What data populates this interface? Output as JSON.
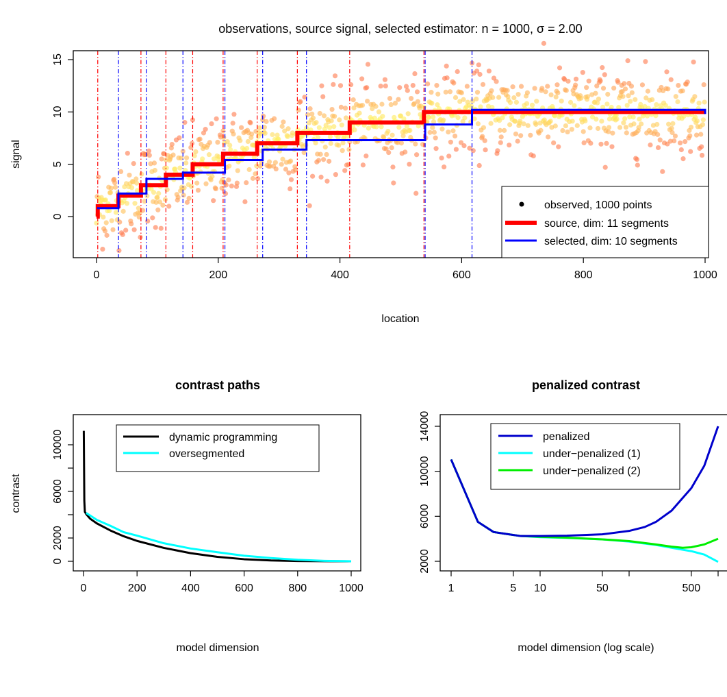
{
  "chart_data": [
    {
      "type": "scatter",
      "title": "observations, source signal, selected estimator: n = 1000, σ = 2.00",
      "xlabel": "location",
      "ylabel": "signal",
      "xlim": [
        0,
        1000
      ],
      "ylim": [
        -3.5,
        15.5
      ],
      "x_ticks": [
        0,
        200,
        400,
        600,
        800,
        1000
      ],
      "y_ticks": [
        0,
        5,
        10,
        15
      ],
      "legend_position": "bottom-right",
      "legend": [
        "observed, 1000 points",
        "source, dim: 11 segments",
        "selected, dim: 10 segments"
      ],
      "colors": {
        "source": "#ff0000",
        "selected": "#0000ff",
        "points_low": "#f08080",
        "points_high": "#ffff66"
      },
      "series": [
        {
          "name": "source, dim: 11 segments",
          "kind": "step",
          "breakpoints": [
            0,
            2,
            36,
            73,
            114,
            158,
            208,
            264,
            330,
            416,
            538,
            1000
          ],
          "values": [
            0.0,
            1.0,
            2.0,
            3.0,
            4.0,
            5.0,
            6.0,
            7.0,
            8.0,
            9.0,
            10.0
          ]
        },
        {
          "name": "selected, dim: 10 segments",
          "kind": "step",
          "breakpoints": [
            1,
            36,
            82,
            142,
            211,
            273,
            345,
            540,
            617,
            1000
          ],
          "values": [
            0.8,
            2.2,
            3.6,
            4.2,
            5.4,
            6.4,
            7.3,
            8.8,
            10.2,
            9.8
          ]
        },
        {
          "name": "observed, 1000 points",
          "kind": "points",
          "n": 1000,
          "sigma": 2.0
        }
      ],
      "vlines_source": [
        2,
        73,
        114,
        158,
        208,
        264,
        330,
        416,
        538
      ],
      "vlines_selected": [
        36,
        82,
        142,
        211,
        273,
        345,
        540,
        617
      ]
    },
    {
      "type": "line",
      "title": "contrast paths",
      "xlabel": "model dimension",
      "ylabel": "contrast",
      "xlim": [
        0,
        1000
      ],
      "ylim": [
        0,
        11000
      ],
      "x_ticks": [
        0,
        200,
        400,
        600,
        800,
        1000
      ],
      "y_ticks": [
        0,
        2000,
        6000,
        10000
      ],
      "legend_position": "top-right",
      "series": [
        {
          "name": "dynamic programming",
          "color": "#000000",
          "x": [
            1,
            3,
            5,
            10,
            25,
            50,
            100,
            150,
            200,
            300,
            400,
            500,
            600,
            700,
            800,
            900,
            1000
          ],
          "y": [
            11200,
            5200,
            4250,
            4050,
            3650,
            3250,
            2650,
            2150,
            1750,
            1150,
            700,
            380,
            180,
            70,
            20,
            5,
            0
          ]
        },
        {
          "name": "oversegmented",
          "color": "#00ffff",
          "x": [
            10,
            50,
            100,
            150,
            200,
            300,
            400,
            500,
            600,
            700,
            800,
            900,
            1000
          ],
          "y": [
            4150,
            3550,
            3050,
            2500,
            2200,
            1550,
            1100,
            780,
            480,
            280,
            130,
            40,
            0
          ]
        }
      ]
    },
    {
      "type": "line",
      "title": "penalized contrast",
      "xlabel": "model dimension (log scale)",
      "ylabel": "",
      "log_x": true,
      "xlim": [
        1,
        1000
      ],
      "ylim": [
        2000,
        14000
      ],
      "x_ticks": [
        1,
        5,
        10,
        50,
        100,
        500,
        1000
      ],
      "x_tick_labels": [
        "1",
        "5",
        "10",
        "50",
        "",
        "500",
        ""
      ],
      "y_ticks": [
        2000,
        6000,
        10000,
        14000
      ],
      "legend_position": "top-center",
      "series": [
        {
          "name": "penalized",
          "color": "#0000cc",
          "x": [
            1,
            2,
            3,
            4,
            6,
            10,
            20,
            50,
            100,
            150,
            200,
            300,
            500,
            700,
            1000
          ],
          "y": [
            11050,
            5500,
            4600,
            4450,
            4250,
            4250,
            4280,
            4400,
            4700,
            5050,
            5500,
            6500,
            8500,
            10500,
            14000
          ]
        },
        {
          "name": "under−penalized (1)",
          "color": "#00ffff",
          "x": [
            1,
            2,
            3,
            4,
            6,
            10,
            20,
            50,
            100,
            200,
            300,
            500,
            700,
            1000
          ],
          "y": [
            11050,
            5500,
            4600,
            4450,
            4250,
            4150,
            4080,
            3950,
            3750,
            3450,
            3200,
            2900,
            2600,
            1950
          ]
        },
        {
          "name": "under−penalized (2)",
          "color": "#00ee00",
          "x": [
            1,
            2,
            3,
            4,
            6,
            10,
            20,
            50,
            100,
            200,
            300,
            400,
            500,
            700,
            1000
          ],
          "y": [
            11050,
            5500,
            4600,
            4450,
            4250,
            4180,
            4100,
            3950,
            3800,
            3500,
            3300,
            3200,
            3250,
            3500,
            4000
          ]
        }
      ]
    }
  ]
}
